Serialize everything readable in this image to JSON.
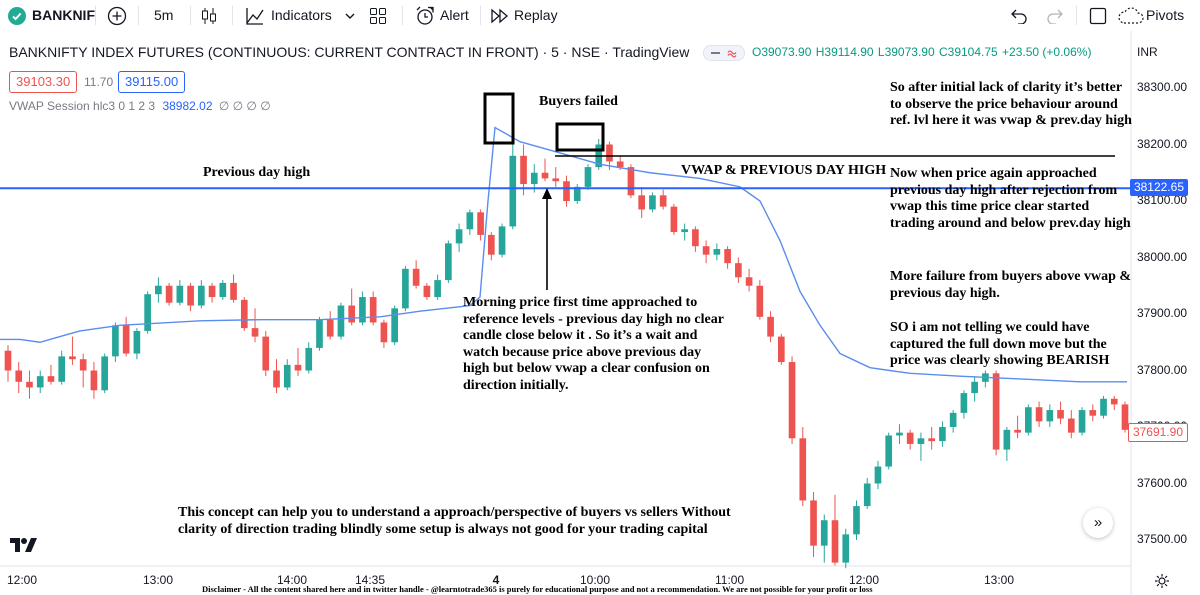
{
  "toolbar": {
    "symbol": "BANKNIF",
    "interval": "5m",
    "indicators_label": "Indicators",
    "alert_label": "Alert",
    "replay_label": "Replay",
    "pivots_label": "Pivots"
  },
  "legend": {
    "title": "BANKNIFTY INDEX FUTURES (CONTINUOUS: CURRENT CONTRACT IN FRONT) · 5 · NSE · TradingView",
    "open": "O39073.90",
    "high": "H39114.90",
    "low": "L39073.90",
    "close": "C39104.75",
    "change": "+23.50 (+0.06%)",
    "bid": "39103.30",
    "spread": "11.70",
    "ask": "39115.00",
    "vwap_label": "VWAP Session hlc3 0 1 2 3",
    "vwap_value": "38982.02",
    "vwap_extra": "∅ ∅ ∅ ∅"
  },
  "currency": "INR",
  "colors": {
    "up": "#26a69a",
    "down": "#ef5350",
    "vwap": "#5b8def",
    "level": "#2962ff"
  },
  "price_tags": {
    "level": "38122.65",
    "last": "37691.90"
  },
  "annotations": {
    "buyers_failed": "Buyers failed",
    "prev_day_high": "Previous day high",
    "vwap_pdh": "VWAP & PREVIOUS DAY HIGH",
    "right_1": "So after initial lack of clarity it’s better to observe the price behaviour around ref. lvl here it was vwap & prev.day high",
    "right_2": "Now when price again approached previous day high after rejection from vwap this time price clear started trading around and below prev.day high",
    "right_3": "More failure from buyers above vwap & previous day high.",
    "right_4": "SO i am not telling we could have captured the full down move but the price was clearly showing BEARISH",
    "morning": "Morning price first time approached to reference levels - previous day high no clear candle close below it . So it’s a wait and watch because price above previous day high but below vwap a clear confusion on direction initially.",
    "bottom": "This concept can help you to understand a approach/perspective of buyers vs sellers Without clarity of direction trading blindly some setup is always not good for your trading capital",
    "disclaimer": "Disclaimer - All the content shared here and in twitter handle - @learntotrade365 is purely for educational purpose and not a recommendation. We are not possible for your profit or loss"
  },
  "chart_data": {
    "type": "candlestick",
    "title": "BANKNIFTY INDEX FUTURES (CONTINUOUS: CURRENT CONTRACT IN FRONT) · 5 · NSE · TradingView",
    "ylim": [
      37450,
      38350
    ],
    "y_ticks": [
      "38300.00",
      "38200.00",
      "38100.00",
      "38000.00",
      "37900.00",
      "37800.00",
      "37700.00",
      "37600.00",
      "37500.00"
    ],
    "x_ticks": [
      "12:00",
      "13:00",
      "14:00",
      "14:35",
      "4",
      "10:00",
      "11:00",
      "12:00",
      "13:00"
    ],
    "grid": false,
    "reference_level": 38122.65,
    "last_price": 37691.9,
    "candles": [
      [
        37835,
        37845,
        37780,
        37800
      ],
      [
        37800,
        37815,
        37760,
        37780
      ],
      [
        37780,
        37800,
        37750,
        37770
      ],
      [
        37770,
        37800,
        37760,
        37790
      ],
      [
        37790,
        37810,
        37775,
        37780
      ],
      [
        37780,
        37835,
        37775,
        37825
      ],
      [
        37825,
        37860,
        37810,
        37820
      ],
      [
        37820,
        37830,
        37770,
        37800
      ],
      [
        37800,
        37815,
        37750,
        37765
      ],
      [
        37765,
        37830,
        37760,
        37825
      ],
      [
        37825,
        37885,
        37815,
        37880
      ],
      [
        37880,
        37895,
        37825,
        37830
      ],
      [
        37830,
        37875,
        37820,
        37870
      ],
      [
        37870,
        37940,
        37865,
        37935
      ],
      [
        37935,
        37965,
        37920,
        37950
      ],
      [
        37950,
        37955,
        37915,
        37920
      ],
      [
        37920,
        37960,
        37915,
        37950
      ],
      [
        37950,
        37955,
        37905,
        37915
      ],
      [
        37915,
        37960,
        37910,
        37950
      ],
      [
        37950,
        37955,
        37920,
        37930
      ],
      [
        37930,
        37960,
        37925,
        37955
      ],
      [
        37955,
        37970,
        37920,
        37925
      ],
      [
        37925,
        37930,
        37870,
        37875
      ],
      [
        37875,
        37910,
        37850,
        37860
      ],
      [
        37860,
        37870,
        37790,
        37800
      ],
      [
        37800,
        37820,
        37760,
        37770
      ],
      [
        37770,
        37820,
        37765,
        37810
      ],
      [
        37810,
        37840,
        37790,
        37800
      ],
      [
        37800,
        37850,
        37795,
        37840
      ],
      [
        37840,
        37895,
        37835,
        37890
      ],
      [
        37890,
        37905,
        37855,
        37860
      ],
      [
        37860,
        37920,
        37855,
        37915
      ],
      [
        37915,
        37945,
        37880,
        37885
      ],
      [
        37885,
        37940,
        37880,
        37930
      ],
      [
        37930,
        37940,
        37880,
        37885
      ],
      [
        37885,
        37890,
        37840,
        37850
      ],
      [
        37850,
        37915,
        37845,
        37910
      ],
      [
        37910,
        37985,
        37905,
        37980
      ],
      [
        37980,
        37995,
        37945,
        37950
      ],
      [
        37950,
        37955,
        37925,
        37930
      ],
      [
        37930,
        37970,
        37925,
        37960
      ],
      [
        37960,
        38030,
        37955,
        38025
      ],
      [
        38025,
        38060,
        38010,
        38050
      ],
      [
        38050,
        38085,
        38040,
        38080
      ],
      [
        38080,
        38085,
        38030,
        38040
      ],
      [
        38040,
        38045,
        37995,
        38005
      ],
      [
        38005,
        38060,
        38000,
        38055
      ],
      [
        38055,
        38270,
        38050,
        38180
      ],
      [
        38180,
        38200,
        38110,
        38130
      ],
      [
        38130,
        38165,
        38115,
        38150
      ],
      [
        38150,
        38175,
        38135,
        38140
      ],
      [
        38140,
        38160,
        38125,
        38135
      ],
      [
        38135,
        38145,
        38090,
        38100
      ],
      [
        38100,
        38130,
        38095,
        38125
      ],
      [
        38125,
        38165,
        38120,
        38160
      ],
      [
        38160,
        38210,
        38155,
        38200
      ],
      [
        38200,
        38205,
        38155,
        38170
      ],
      [
        38170,
        38180,
        38155,
        38160
      ],
      [
        38160,
        38165,
        38105,
        38110
      ],
      [
        38110,
        38125,
        38070,
        38085
      ],
      [
        38085,
        38115,
        38080,
        38110
      ],
      [
        38110,
        38120,
        38085,
        38090
      ],
      [
        38090,
        38095,
        38040,
        38045
      ],
      [
        38045,
        38060,
        38030,
        38050
      ],
      [
        38050,
        38055,
        38010,
        38020
      ],
      [
        38020,
        38030,
        37990,
        38005
      ],
      [
        38005,
        38025,
        37995,
        38015
      ],
      [
        38015,
        38020,
        37980,
        37990
      ],
      [
        37990,
        38000,
        37955,
        37965
      ],
      [
        37965,
        37980,
        37940,
        37950
      ],
      [
        37950,
        37960,
        37890,
        37895
      ],
      [
        37895,
        37905,
        37850,
        37860
      ],
      [
        37860,
        37865,
        37810,
        37815
      ],
      [
        37815,
        37825,
        37670,
        37680
      ],
      [
        37680,
        37700,
        37560,
        37570
      ],
      [
        37570,
        37585,
        37470,
        37490
      ],
      [
        37490,
        37545,
        37460,
        37535
      ],
      [
        37535,
        37580,
        37455,
        37460
      ],
      [
        37460,
        37520,
        37450,
        37510
      ],
      [
        37510,
        37570,
        37500,
        37560
      ],
      [
        37560,
        37610,
        37555,
        37600
      ],
      [
        37600,
        37640,
        37590,
        37630
      ],
      [
        37630,
        37690,
        37625,
        37685
      ],
      [
        37685,
        37705,
        37670,
        37690
      ],
      [
        37690,
        37695,
        37660,
        37670
      ],
      [
        37670,
        37690,
        37640,
        37680
      ],
      [
        37680,
        37700,
        37660,
        37675
      ],
      [
        37675,
        37710,
        37665,
        37700
      ],
      [
        37700,
        37730,
        37690,
        37725
      ],
      [
        37725,
        37765,
        37715,
        37760
      ],
      [
        37760,
        37790,
        37745,
        37780
      ],
      [
        37780,
        37800,
        37770,
        37795
      ],
      [
        37795,
        37800,
        37650,
        37660
      ],
      [
        37660,
        37700,
        37640,
        37695
      ],
      [
        37695,
        37720,
        37680,
        37690
      ],
      [
        37690,
        37740,
        37685,
        37735
      ],
      [
        37735,
        37745,
        37700,
        37710
      ],
      [
        37710,
        37740,
        37700,
        37730
      ],
      [
        37730,
        37745,
        37705,
        37715
      ],
      [
        37715,
        37730,
        37680,
        37690
      ],
      [
        37690,
        37735,
        37685,
        37730
      ],
      [
        37730,
        37740,
        37710,
        37720
      ],
      [
        37720,
        37755,
        37715,
        37750
      ],
      [
        37750,
        37755,
        37730,
        37740
      ],
      [
        37740,
        37745,
        37690,
        37695
      ]
    ],
    "vwap": [
      [
        0,
        37855
      ],
      [
        20,
        37855
      ],
      [
        40,
        37850
      ],
      [
        60,
        37860
      ],
      [
        80,
        37870
      ],
      [
        120,
        37880
      ],
      [
        200,
        37888
      ],
      [
        260,
        37890
      ],
      [
        320,
        37890
      ],
      [
        380,
        37895
      ],
      [
        420,
        37905
      ],
      [
        470,
        37915
      ],
      [
        480,
        37930
      ],
      [
        488,
        38100
      ],
      [
        495,
        38230
      ],
      [
        520,
        38205
      ],
      [
        560,
        38185
      ],
      [
        600,
        38165
      ],
      [
        650,
        38150
      ],
      [
        700,
        38140
      ],
      [
        740,
        38125
      ],
      [
        760,
        38100
      ],
      [
        780,
        38030
      ],
      [
        800,
        37940
      ],
      [
        820,
        37880
      ],
      [
        840,
        37830
      ],
      [
        870,
        37805
      ],
      [
        910,
        37795
      ],
      [
        960,
        37790
      ],
      [
        1020,
        37785
      ],
      [
        1080,
        37780
      ],
      [
        1127,
        37780
      ]
    ]
  }
}
